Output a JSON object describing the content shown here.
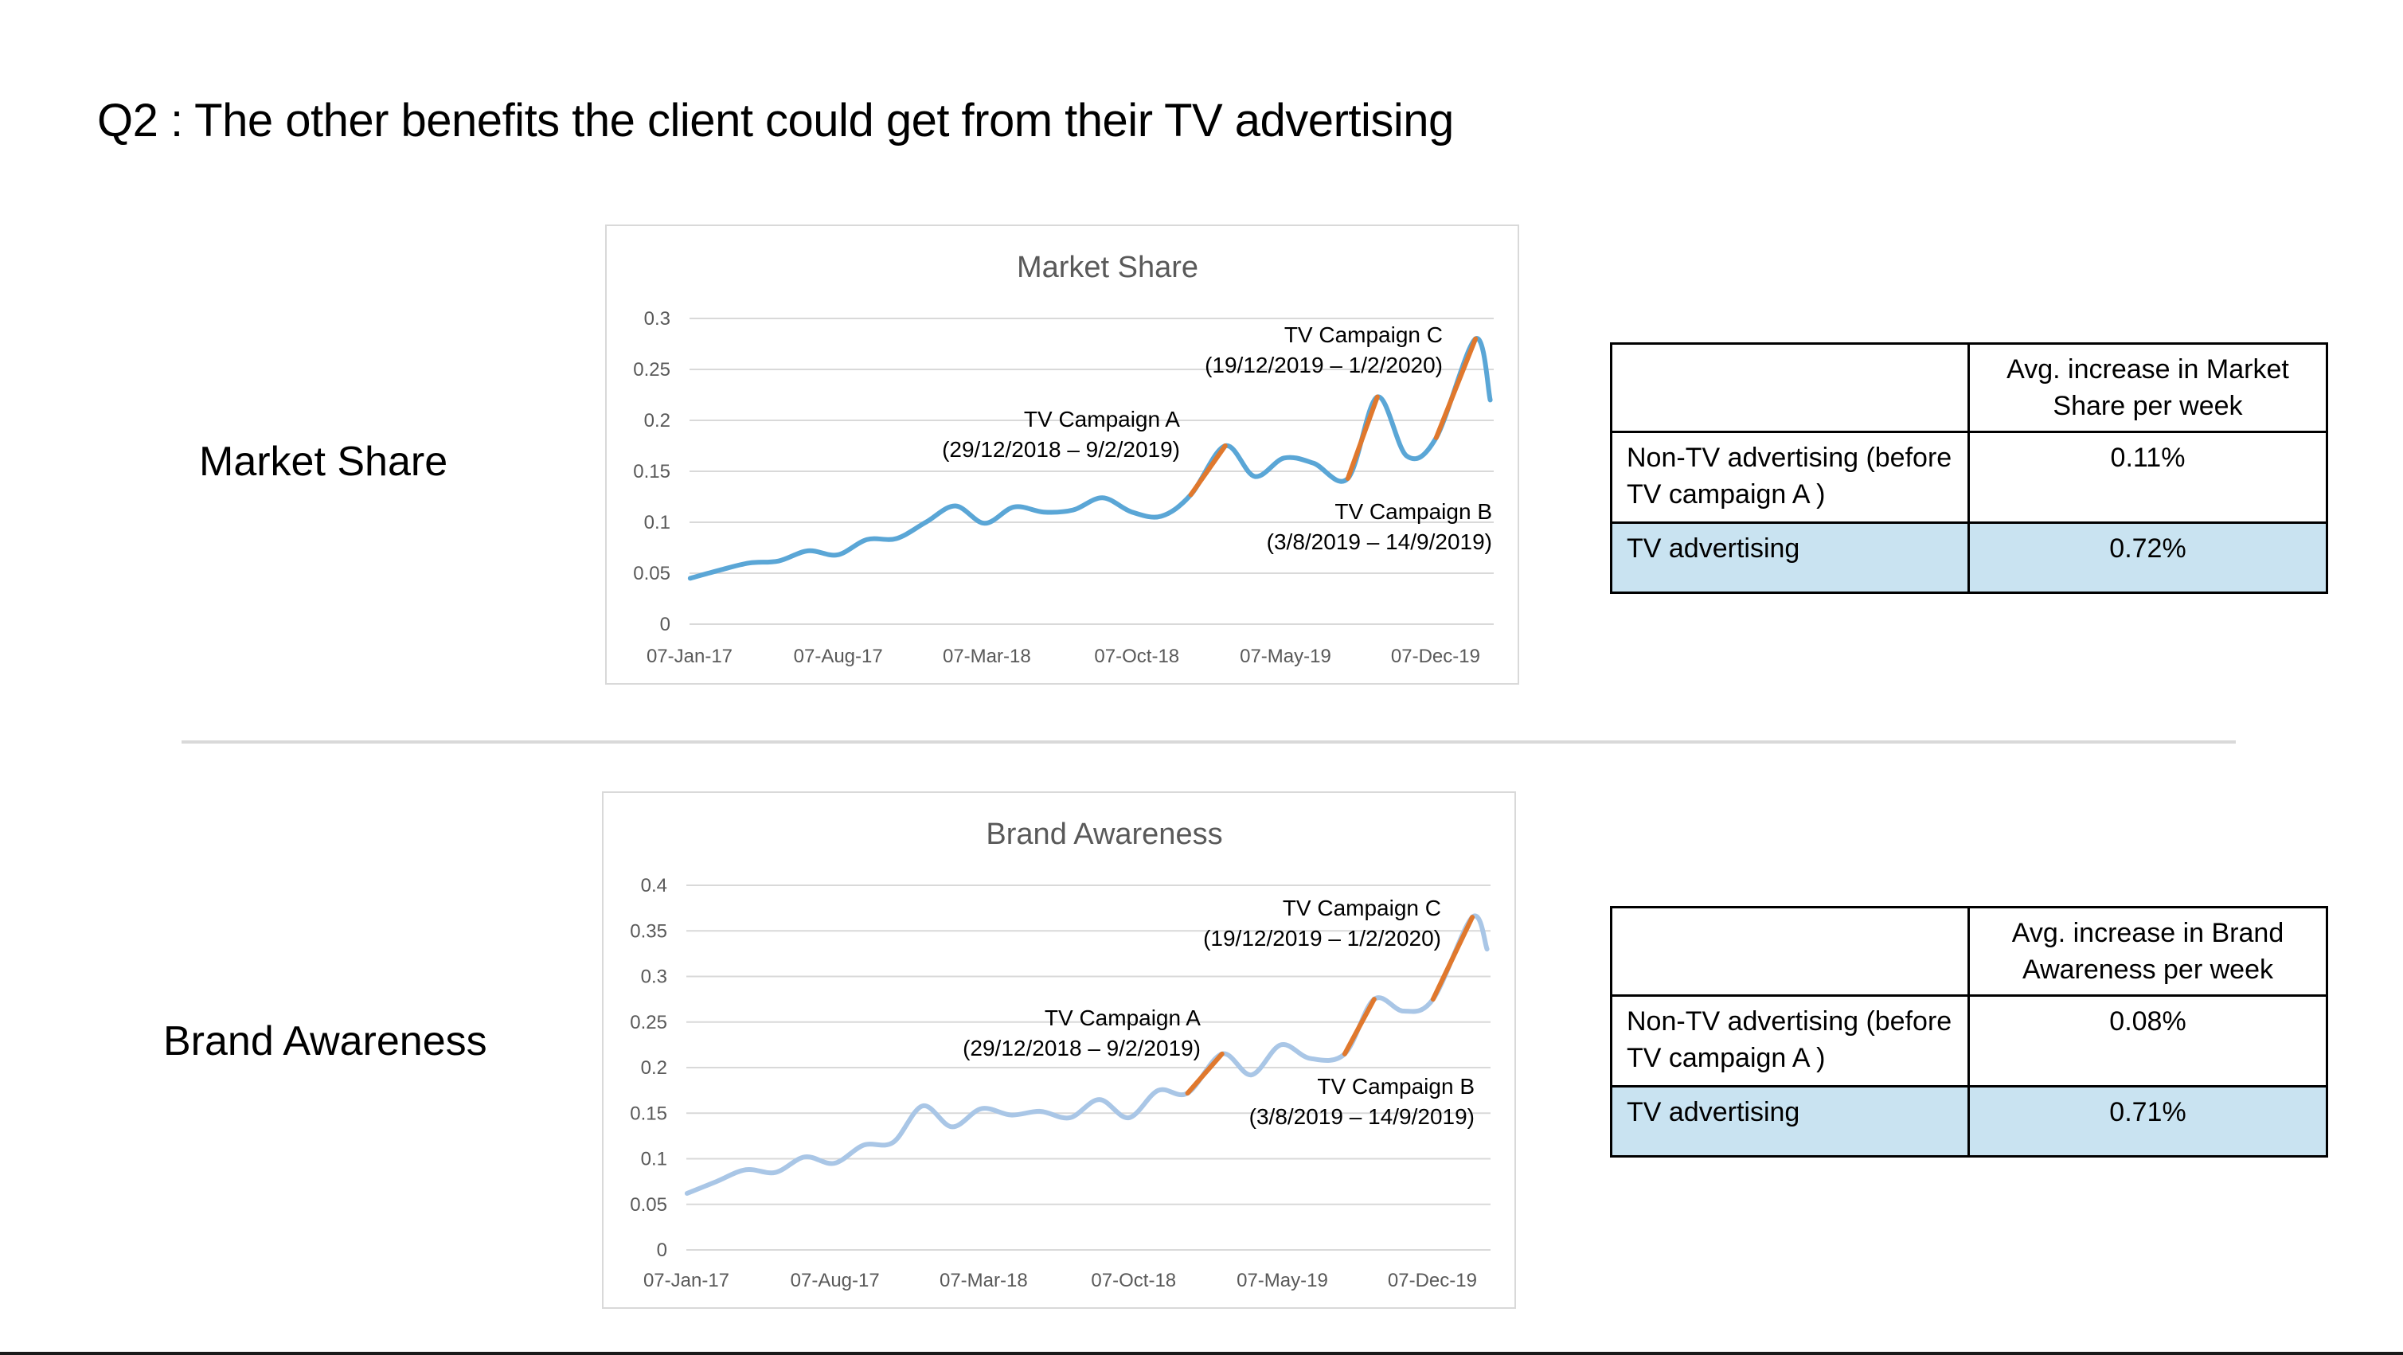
{
  "slide": {
    "title": "Q2 : The other benefits the client could get from their TV advertising"
  },
  "sections": [
    {
      "label": "Market Share"
    },
    {
      "label": "Brand Awareness"
    }
  ],
  "colors": {
    "base_line_1": "#5aa6d6",
    "base_line_2": "#a9c6e6",
    "campaign": "#e0782d"
  },
  "chart_data": [
    {
      "type": "line",
      "title": "Market Share",
      "x_tick_labels": [
        "07-Jan-17",
        "07-Aug-17",
        "07-Mar-18",
        "07-Oct-18",
        "07-May-19",
        "07-Dec-19"
      ],
      "y_tick_labels": [
        "0",
        "0.05",
        "0.1",
        "0.15",
        "0.2",
        "0.25",
        "0.3"
      ],
      "ylim": [
        0,
        0.3
      ],
      "grid": true,
      "x": [
        "2017-01-08",
        "2017-02-19",
        "2017-04-02",
        "2017-05-14",
        "2017-06-25",
        "2017-08-06",
        "2017-09-17",
        "2017-10-29",
        "2017-12-10",
        "2018-01-21",
        "2018-03-04",
        "2018-04-15",
        "2018-05-27",
        "2018-07-08",
        "2018-08-19",
        "2018-09-30",
        "2018-11-11",
        "2018-12-23",
        "2019-02-10",
        "2019-03-24",
        "2019-05-05",
        "2019-06-16",
        "2019-08-04",
        "2019-09-15",
        "2019-10-27",
        "2019-12-08",
        "2020-02-02",
        "2020-02-23"
      ],
      "values": [
        0.045,
        0.053,
        0.06,
        0.062,
        0.072,
        0.068,
        0.083,
        0.084,
        0.1,
        0.116,
        0.099,
        0.115,
        0.11,
        0.112,
        0.124,
        0.11,
        0.106,
        0.127,
        0.175,
        0.145,
        0.163,
        0.158,
        0.143,
        0.223,
        0.165,
        0.183,
        0.28,
        0.22
      ],
      "campaigns": [
        {
          "name": "TV Campaign A",
          "period": "(29/12/2018 – 9/2/2019)",
          "start": "2018-12-29",
          "end": "2019-02-09"
        },
        {
          "name": "TV Campaign B",
          "period": "(3/8/2019 – 14/9/2019)",
          "start": "2019-08-03",
          "end": "2019-09-14"
        },
        {
          "name": "TV Campaign C",
          "period": "(19/12/2019 – 1/2/2020)",
          "start": "2019-12-19",
          "end": "2020-02-01"
        }
      ]
    },
    {
      "type": "line",
      "title": "Brand Awareness",
      "x_tick_labels": [
        "07-Jan-17",
        "07-Aug-17",
        "07-Mar-18",
        "07-Oct-18",
        "07-May-19",
        "07-Dec-19"
      ],
      "y_tick_labels": [
        "0",
        "0.05",
        "0.1",
        "0.15",
        "0.2",
        "0.25",
        "0.3",
        "0.35",
        "0.4"
      ],
      "ylim": [
        0,
        0.4
      ],
      "grid": true,
      "x": [
        "2017-01-08",
        "2017-02-19",
        "2017-04-02",
        "2017-05-14",
        "2017-06-25",
        "2017-08-06",
        "2017-09-17",
        "2017-10-29",
        "2017-12-10",
        "2018-01-21",
        "2018-03-04",
        "2018-04-15",
        "2018-05-27",
        "2018-07-08",
        "2018-08-19",
        "2018-09-30",
        "2018-11-11",
        "2018-12-23",
        "2019-02-10",
        "2019-03-24",
        "2019-05-05",
        "2019-06-16",
        "2019-08-04",
        "2019-09-15",
        "2019-10-27",
        "2019-12-08",
        "2020-02-02",
        "2020-02-23"
      ],
      "values": [
        0.062,
        0.075,
        0.088,
        0.085,
        0.102,
        0.095,
        0.115,
        0.118,
        0.158,
        0.135,
        0.155,
        0.148,
        0.152,
        0.145,
        0.165,
        0.145,
        0.175,
        0.172,
        0.215,
        0.192,
        0.225,
        0.21,
        0.215,
        0.275,
        0.262,
        0.275,
        0.365,
        0.33
      ],
      "campaigns": [
        {
          "name": "TV Campaign A",
          "period": "(29/12/2018 – 9/2/2019)",
          "start": "2018-12-29",
          "end": "2019-02-09"
        },
        {
          "name": "TV Campaign B",
          "period": "(3/8/2019 – 14/9/2019)",
          "start": "2019-08-03",
          "end": "2019-09-14"
        },
        {
          "name": "TV Campaign C",
          "period": "(19/12/2019 – 1/2/2020)",
          "start": "2019-12-19",
          "end": "2020-02-01"
        }
      ]
    }
  ],
  "tables": [
    {
      "header": [
        "",
        "Avg. increase in Market Share per week"
      ],
      "rows": [
        {
          "label": "Non-TV advertising (before TV campaign A )",
          "value": "0.11%"
        },
        {
          "label": "TV advertising",
          "value": "0.72%"
        }
      ]
    },
    {
      "header": [
        "",
        "Avg. increase in Brand Awareness per week"
      ],
      "rows": [
        {
          "label": "Non-TV advertising (before TV campaign A )",
          "value": "0.08%"
        },
        {
          "label": "TV advertising",
          "value": "0.71%"
        }
      ]
    }
  ]
}
